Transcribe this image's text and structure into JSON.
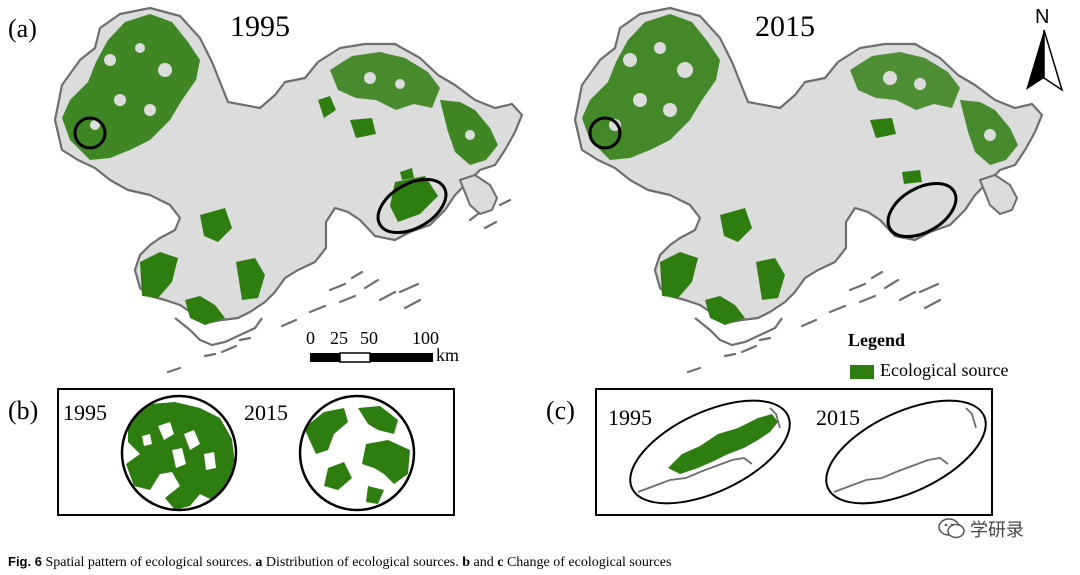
{
  "panels": {
    "a_label": "(a)",
    "b_label": "(b)",
    "c_label": "(c)",
    "year_1995": "1995",
    "year_2015": "2015"
  },
  "north_arrow": {
    "letter": "N",
    "icon": "north-arrow-icon"
  },
  "scale_bar": {
    "ticks": [
      "0",
      "25",
      "50",
      "100"
    ],
    "unit": "km"
  },
  "legend": {
    "title": "Legend",
    "item": "Ecological source",
    "swatch_color": "#2e7d10"
  },
  "colors": {
    "land": "#dcdcdc",
    "coast": "#6e6e6e",
    "eco": "#2e7d10"
  },
  "caption": {
    "fig": "Fig. 6",
    "text1": "Spatial pattern of ecological sources.",
    "a": "a",
    "text2": "Distribution of ecological sources.",
    "b": "b",
    "and": "and",
    "c": "c",
    "text3": "Change of ecological sources"
  },
  "watermark": {
    "text": "学研录",
    "icon": "wechat-icon"
  }
}
